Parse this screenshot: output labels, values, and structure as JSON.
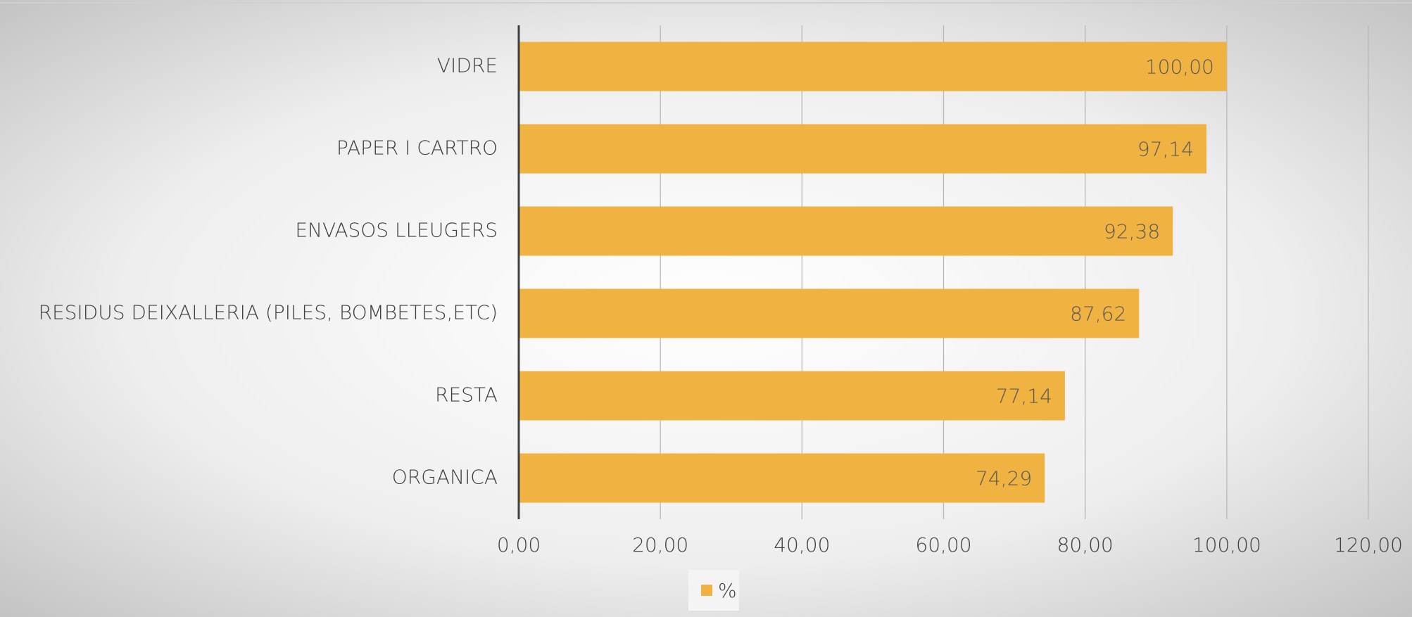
{
  "chart_data": {
    "type": "hbar",
    "categories": [
      "VIDRE",
      "PAPER I CARTRO",
      "ENVASOS LLEUGERS",
      "RESIDUS DEIXALLERIA (PILES, BOMBETES,ETC)",
      "RESTA",
      "ORGANICA"
    ],
    "series": [
      {
        "name": "%",
        "color": "#f0b240",
        "values": [
          100,
          97.14,
          92.38,
          87.62,
          77.14,
          74.29
        ],
        "value_labels": [
          "100,00",
          "97,14",
          "92,38",
          "87,62",
          "77,14",
          "74,29"
        ]
      }
    ],
    "xlim": [
      0,
      120
    ],
    "xticks": [
      {
        "value": 0,
        "label": "0,00"
      },
      {
        "value": 20,
        "label": "20,00"
      },
      {
        "value": 40,
        "label": "40,00"
      },
      {
        "value": 60,
        "label": "60,00"
      },
      {
        "value": 80,
        "label": "80,00"
      },
      {
        "value": 100,
        "label": "100,00"
      },
      {
        "value": 120,
        "label": "120,00"
      }
    ],
    "grid": true,
    "legend": "bottom"
  }
}
